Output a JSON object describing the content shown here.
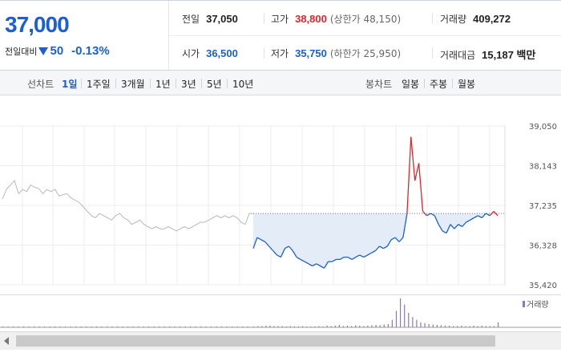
{
  "quote": {
    "price": "37,000",
    "change_label": "전일대비",
    "change_value": "50",
    "change_pct": "-0.13%",
    "prev_close_label": "전일",
    "prev_close": "37,050",
    "open_label": "시가",
    "open": "36,500",
    "high_label": "고가",
    "high": "38,800",
    "upper_limit": "(상한가 48,150)",
    "low_label": "저가",
    "low": "35,750",
    "lower_limit": "(하한가 25,950)",
    "volume_label": "거래량",
    "volume": "409,272",
    "amount_label": "거래대금",
    "amount": "15,187 백만"
  },
  "tabs": {
    "line_label": "선차트",
    "line_periods": [
      "1일",
      "1주일",
      "3개월",
      "1년",
      "3년",
      "5년",
      "10년"
    ],
    "active": "1일",
    "candle_label": "봉차트",
    "candle_periods": [
      "일봉",
      "주봉",
      "월봉"
    ]
  },
  "colors": {
    "up": "#e0262a",
    "down": "#1a5fd6",
    "prev": "#b9b9b9",
    "fill": "#e4ecf8",
    "volume": "#8a78b5"
  },
  "volume_legend": "거래량",
  "chart_data": {
    "type": "line",
    "title": "",
    "ylim": [
      35420,
      39050
    ],
    "y_ticks": [
      "39,050",
      "38,143",
      "37,235",
      "36,328",
      "35,420"
    ],
    "reference_line": 37050,
    "series": [
      {
        "values": [
          37380,
          37600,
          37700,
          37800,
          37500,
          37600,
          37550,
          37700,
          37650,
          37620,
          37500,
          37600,
          37550,
          37600,
          37450,
          37480,
          37500,
          37400,
          37350,
          37300,
          37200,
          37100,
          37000,
          36950,
          37050,
          37000,
          36950,
          36900,
          37000,
          37050,
          36950,
          36900,
          36800,
          36850,
          36900,
          36800,
          36750,
          36700,
          36750,
          36700,
          36700,
          36750,
          36700,
          36650,
          36700,
          36750,
          36700,
          36750,
          36800,
          36850,
          36850,
          36900,
          36950,
          37000,
          36950,
          37000,
          36950,
          37000,
          36950,
          36850,
          36800,
          37050,
          37050
        ]
      },
      {
        "values": [
          36250,
          36500,
          36450,
          36400,
          36300,
          36200,
          36100,
          36050,
          36250,
          36300,
          36200,
          36050,
          36000,
          35950,
          35900,
          35850,
          35900,
          35850,
          35800,
          35950,
          35950,
          36000,
          36000,
          36050,
          36050,
          36000,
          36050,
          36100,
          36050,
          36100,
          36150,
          36200,
          36300,
          36250,
          36300,
          36450,
          36500,
          36400,
          36500,
          37050,
          38800,
          37800,
          38200,
          37100,
          37000,
          37050,
          37000,
          36800,
          36650,
          36600,
          36800,
          36700,
          36800,
          36750,
          36850,
          36900,
          36950,
          37000,
          36950,
          37050,
          37000,
          37100,
          37000
        ]
      }
    ],
    "volume": [
      2,
      1,
      1,
      0,
      1,
      1,
      2,
      1,
      1,
      1,
      0,
      1,
      1,
      1,
      0,
      1,
      1,
      1,
      1,
      1,
      0,
      1,
      1,
      1,
      1,
      0,
      1,
      1,
      1,
      1,
      1,
      1,
      0,
      1,
      1,
      1,
      1,
      1,
      1,
      1,
      1,
      1,
      1,
      1,
      1,
      1,
      1,
      1,
      2,
      3,
      3,
      4,
      4,
      3,
      3,
      3,
      2,
      3,
      2,
      2,
      3,
      2,
      2,
      2,
      3,
      2,
      4,
      3,
      4,
      6,
      3,
      4,
      3,
      5,
      4,
      3,
      4,
      5,
      6,
      5,
      7,
      8,
      18,
      40,
      70,
      55,
      35,
      25,
      18,
      12,
      10,
      8,
      7,
      6,
      5,
      4,
      4,
      3,
      3,
      4,
      3,
      3,
      4,
      3,
      4,
      3,
      3,
      3,
      12
    ]
  }
}
